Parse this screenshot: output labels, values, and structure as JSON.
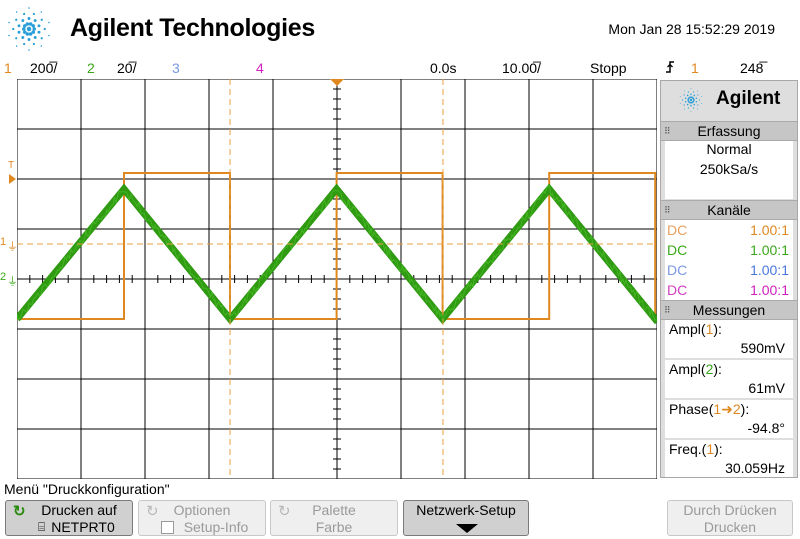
{
  "header": {
    "brand": "Agilent Technologies",
    "datetime": "Mon Jan 28 15:52:29 2019"
  },
  "status": {
    "ch1_num": "1",
    "ch1_scale": "200̅/",
    "ch2_num": "2",
    "ch2_scale": "20̅/",
    "ch3_num": "3",
    "ch4_num": "4",
    "time_offset": "0.0s",
    "timebase": "10.00̅/",
    "run_state": "Stopp",
    "trigger_icon": "trigger-edge-icon",
    "trigger_channel": "1",
    "trigger_level": "248̅"
  },
  "side_panel": {
    "brand": "Agilent",
    "acquisition_title": "Erfassung",
    "acquisition_mode": "Normal",
    "sample_rate": "250kSa/s",
    "channels_title": "Kanäle",
    "channels": [
      {
        "coupling": "DC",
        "probe": "1.00:1",
        "color": "#e8a060",
        "probe_color": "#e08820"
      },
      {
        "coupling": "DC",
        "probe": "1.00:1",
        "color": "#3aa81a",
        "probe_color": "#3aa81a"
      },
      {
        "coupling": "DC",
        "probe": "1.00:1",
        "color": "#7a98e0",
        "probe_color": "#4a78e0"
      },
      {
        "coupling": "DC",
        "probe": "1.00:1",
        "color": "#d040c0",
        "probe_color": "#d020c0"
      }
    ],
    "measurements_title": "Messungen",
    "measurements": [
      {
        "pre": "Ampl(",
        "ch": "1",
        "post": "):",
        "value": "590mV",
        "ch_color": "#e08820"
      },
      {
        "pre": "Ampl(",
        "ch": "2",
        "post": "):",
        "value": "61mV",
        "ch_color": "#3aa81a"
      },
      {
        "pre": "Phase(",
        "ch": "1➜2",
        "post": "):",
        "value": "-94.8°",
        "ch_color": "#e08820"
      },
      {
        "pre": "Freq.(",
        "ch": "1",
        "post": "):",
        "value": "30.059Hz",
        "ch_color": "#e08820"
      }
    ]
  },
  "colors": {
    "ch1": "#e08820",
    "ch2": "#2f9a12",
    "ch3": "#7a98e0",
    "ch4": "#d020c0",
    "grid": "#000000",
    "cursor": "#e8a040"
  },
  "menu": {
    "title": "Menü \"Druckkonfiguration\"",
    "softkeys": [
      {
        "line1": "Drucken auf",
        "line2": "NETPRT0",
        "state": "active"
      },
      {
        "line1": "Optionen",
        "line2": "Setup-Info",
        "state": "disabled"
      },
      {
        "line1": "Palette",
        "line2": "Farbe",
        "state": "disabled"
      },
      {
        "line1": "Netzwerk-Setup",
        "line2": "",
        "state": "active"
      },
      {
        "line1": "Durch Drücken",
        "line2": "Drucken",
        "state": "disabled"
      }
    ]
  },
  "screen": {
    "ground_marker_1": "1",
    "ground_marker_2": "2",
    "trigger_marker": "T"
  },
  "waveform": {
    "frequency_hz": 30.059,
    "phase_deg": -94.8,
    "ch1_shape": "square",
    "ch2_shape": "triangle"
  }
}
